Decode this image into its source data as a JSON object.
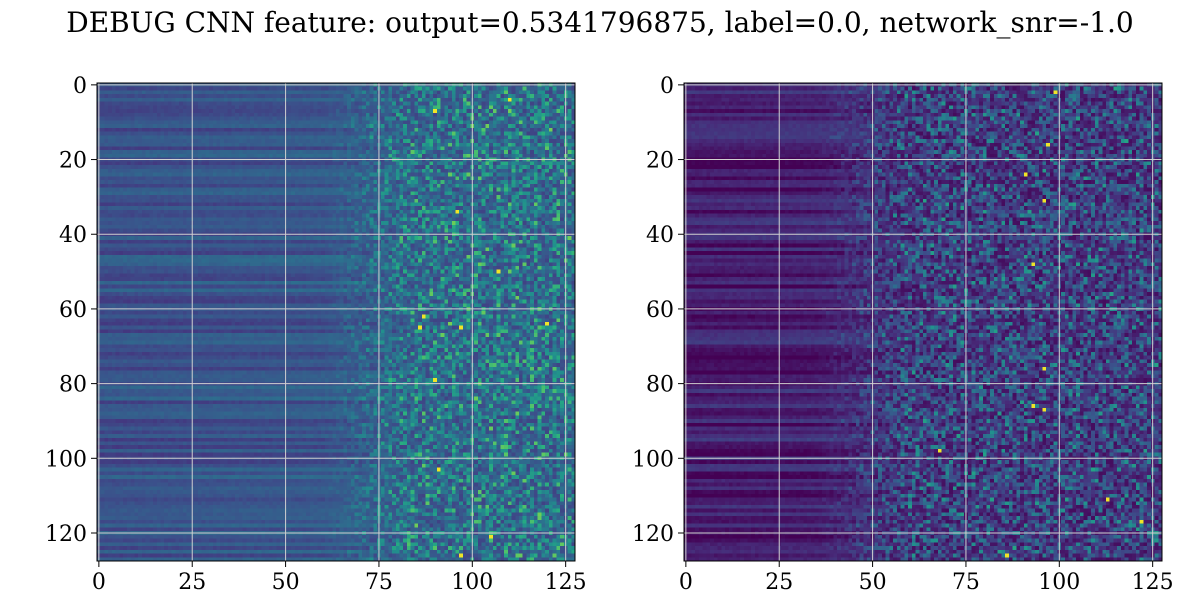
{
  "figure": {
    "title": "DEBUG CNN feature: output=0.5341796875, label=0.0, network_snr=-1.0"
  },
  "colors": {
    "colormap": "viridis",
    "grid": "#d0d0d0",
    "axis": "#000000",
    "background": "#ffffff"
  },
  "chart_data": [
    {
      "type": "heatmap",
      "colormap": "viridis",
      "matrix_shape": [
        128,
        128
      ],
      "xlim": [
        0,
        127
      ],
      "ylim": [
        127,
        0
      ],
      "y_inverted": true,
      "grid": true,
      "xticks": [
        0,
        25,
        50,
        75,
        100,
        125
      ],
      "yticks": [
        0,
        20,
        40,
        60,
        80,
        100,
        120
      ],
      "xtick_labels": [
        "0",
        "25",
        "50",
        "75",
        "100",
        "125"
      ],
      "ytick_labels": [
        "0",
        "20",
        "40",
        "60",
        "80",
        "100",
        "120"
      ],
      "title": "",
      "xlabel": "",
      "ylabel": "",
      "texture": {
        "row_structure_cols": [
          0,
          70
        ],
        "noise_cols": [
          75,
          127
        ],
        "base_level": 0.25,
        "row_variation": 0.08,
        "noise_level": 0.3,
        "hot_pixels": [
          [
            4,
            110
          ],
          [
            62,
            87
          ],
          [
            65,
            86
          ],
          [
            65,
            97
          ],
          [
            64,
            120
          ],
          [
            103,
            91
          ],
          [
            79,
            90
          ],
          [
            50,
            107
          ],
          [
            121,
            105
          ],
          [
            126,
            97
          ],
          [
            34,
            96
          ],
          [
            7,
            90
          ]
        ]
      }
    },
    {
      "type": "heatmap",
      "colormap": "viridis",
      "matrix_shape": [
        128,
        128
      ],
      "xlim": [
        0,
        127
      ],
      "ylim": [
        127,
        0
      ],
      "y_inverted": true,
      "grid": true,
      "xticks": [
        0,
        25,
        50,
        75,
        100,
        125
      ],
      "yticks": [
        0,
        20,
        40,
        60,
        80,
        100,
        120
      ],
      "xtick_labels": [
        "0",
        "25",
        "50",
        "75",
        "100",
        "125"
      ],
      "ytick_labels": [
        "0",
        "20",
        "40",
        "60",
        "80",
        "100",
        "120"
      ],
      "title": "",
      "xlabel": "",
      "ylabel": "",
      "texture": {
        "row_structure_cols": [
          0,
          50
        ],
        "noise_cols": [
          50,
          127
        ],
        "base_level": 0.08,
        "row_variation": 0.1,
        "noise_level": 0.28,
        "hot_pixels": [
          [
            2,
            99
          ],
          [
            16,
            97
          ],
          [
            24,
            91
          ],
          [
            31,
            96
          ],
          [
            48,
            93
          ],
          [
            76,
            96
          ],
          [
            86,
            93
          ],
          [
            87,
            96
          ],
          [
            117,
            122
          ],
          [
            126,
            86
          ],
          [
            98,
            68
          ],
          [
            111,
            113
          ]
        ]
      }
    }
  ]
}
